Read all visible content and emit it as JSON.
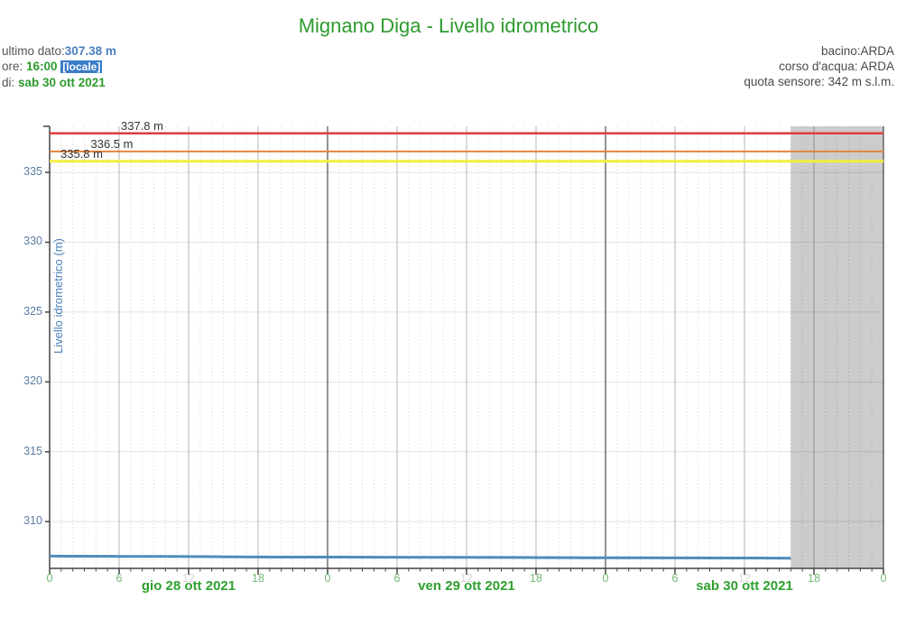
{
  "header": {
    "title": "Mignano Diga - Livello idrometrico",
    "left": {
      "ultimo_dato_label": "ultimo dato:",
      "ultimo_dato_value": "307.38 m",
      "ore_label": "ore: ",
      "ore_value": "16:00",
      "locale_badge": "[locale]",
      "di_label": "di: ",
      "di_value": "sab 30 ott 2021"
    },
    "right": {
      "bacino": "bacino:ARDA",
      "corso_dacqua": "corso d'acqua: ARDA",
      "quota_sensore": "quota sensore: 342 m s.l.m."
    }
  },
  "colors": {
    "title_green": "#2e9b2e",
    "value_blue": "#4a7fc1",
    "badge_blue": "#3a7cc8",
    "day_label_green": "#2fa02f",
    "x_tick_green": "#74b874",
    "x_tick_muted": "#d4d4d4",
    "y_tick_blue": "#5b7ca3",
    "axis": "#444444",
    "grid_h": "#e4e4e4",
    "grid_dot": "#d6d6d6",
    "grid_6h": "#b5b5b5",
    "grid_midnight": "#666666",
    "no_data_fill": "#cccccc",
    "series_blue": "#4e8cba",
    "threshold_red": "#e23b3b",
    "threshold_orange": "#e8823a",
    "threshold_yellow": "#f2ee3e"
  },
  "chart_data": {
    "type": "line",
    "title": "Mignano Diga - Livello idrometrico",
    "ylabel": "Livello idrometrico (m)",
    "xlabel": "",
    "ylim": [
      306.65,
      338.3
    ],
    "yticks": [
      310,
      315,
      320,
      325,
      330,
      335
    ],
    "xlim_hours": [
      0,
      72
    ],
    "xtick_step_hours": 6,
    "xtick_label_cycle": [
      "0",
      "6",
      "12",
      "18"
    ],
    "muted_tick_label": "12",
    "minor_xtick_step_hours": 1,
    "grid": true,
    "legend_position": "none",
    "days": [
      {
        "label": "gio 28 ott 2021",
        "center_hour": 12
      },
      {
        "label": "ven 29 ott 2021",
        "center_hour": 36
      },
      {
        "label": "sab 30 ott 2021",
        "center_hour": 60
      }
    ],
    "thresholds": [
      {
        "value": 337.8,
        "label": "337.8 m",
        "color": "#e23b3b",
        "width": 2.5
      },
      {
        "value": 336.5,
        "label": "336.5 m",
        "color": "#e8823a",
        "width": 2
      },
      {
        "value": 335.8,
        "label": "335.8 m",
        "color": "#f2ee3e",
        "width": 3
      }
    ],
    "series": [
      {
        "name": "Livello idrometrico",
        "color": "#4e8cba",
        "points": [
          [
            0,
            307.53
          ],
          [
            2,
            307.52
          ],
          [
            6,
            307.51
          ],
          [
            10,
            307.5
          ],
          [
            14,
            307.49
          ],
          [
            16,
            307.47
          ],
          [
            20,
            307.46
          ],
          [
            24,
            307.46
          ],
          [
            28,
            307.45
          ],
          [
            32,
            307.44
          ],
          [
            36,
            307.44
          ],
          [
            40,
            307.43
          ],
          [
            44,
            307.42
          ],
          [
            46,
            307.41
          ],
          [
            50,
            307.41
          ],
          [
            54,
            307.4
          ],
          [
            58,
            307.39
          ],
          [
            61,
            307.39
          ],
          [
            64,
            307.38
          ]
        ]
      }
    ],
    "last_value": 307.38,
    "last_time": "16:00 sab 30 ott 2021",
    "no_data_region": {
      "from_hour": 64,
      "to_hour": 72
    }
  }
}
